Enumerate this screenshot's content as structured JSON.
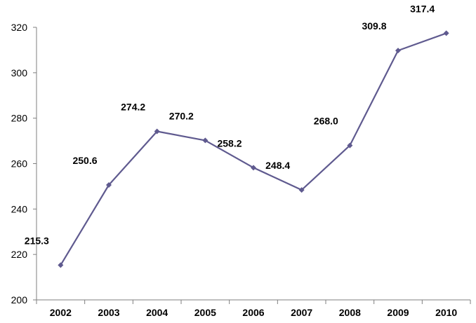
{
  "chart_data": {
    "type": "line",
    "title": "",
    "xlabel": "",
    "ylabel": "",
    "categories": [
      "2002",
      "2003",
      "2004",
      "2005",
      "2006",
      "2007",
      "2008",
      "2009",
      "2010"
    ],
    "series": [
      {
        "values": [
          215.3,
          250.6,
          274.2,
          270.2,
          258.2,
          248.4,
          268.0,
          309.8,
          317.4
        ],
        "labels": [
          "215.3",
          "250.6",
          "274.2",
          "270.2",
          "258.2",
          "248.4",
          "268.0",
          "309.8",
          "317.4"
        ],
        "color": "#5f5a8f",
        "marker": "diamond"
      }
    ],
    "ylim": [
      200,
      320
    ],
    "yticks": [
      200,
      220,
      240,
      260,
      280,
      300,
      320
    ],
    "grid": false,
    "legend": "none"
  }
}
